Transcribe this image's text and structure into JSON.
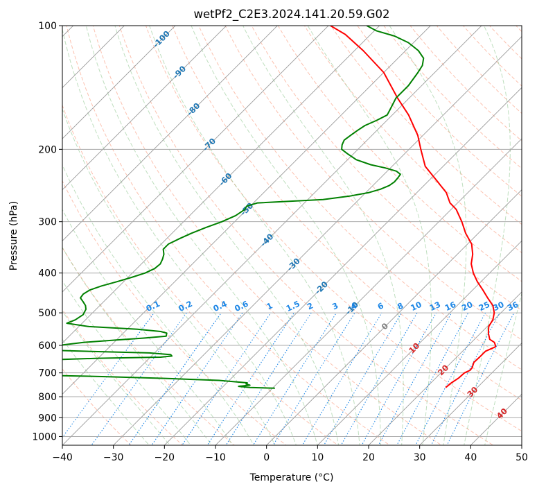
{
  "chart_data": {
    "type": "skewt",
    "title": "wetPf2_C2E3.2024.141.20.59.G02",
    "xlabel": "Temperature (°C)",
    "ylabel": "Pressure (hPa)",
    "xlim": [
      -40,
      50
    ],
    "ylim": [
      1050,
      100
    ],
    "x_ticks": [
      "−40",
      "−30",
      "−20",
      "−10",
      "0",
      "10",
      "20",
      "30",
      "40",
      "50"
    ],
    "y_ticks": [
      "100",
      "200",
      "300",
      "400",
      "500",
      "600",
      "700",
      "800",
      "900",
      "1000"
    ],
    "y_tick_values": [
      100,
      200,
      300,
      400,
      500,
      600,
      700,
      800,
      900,
      1000
    ],
    "isotherm_labels": [
      "-100",
      "-90",
      "-80",
      "-70",
      "-60",
      "-50",
      "-40",
      "-30",
      "-20",
      "-10",
      "0",
      "10",
      "20",
      "30",
      "40"
    ],
    "mixing_ratio_labels": [
      "0.1",
      "0.2",
      "0.4",
      "0.6",
      "1",
      "1.5",
      "2",
      "3",
      "4",
      "6",
      "8",
      "10",
      "13",
      "16",
      "20",
      "25",
      "30",
      "36"
    ],
    "series": [
      {
        "name": "",
        "color": "#ff0000",
        "points": [
          [
            760,
            23.8
          ],
          [
            740,
            24.0
          ],
          [
            720,
            24.5
          ],
          [
            700,
            24.6
          ],
          [
            690,
            25.2
          ],
          [
            680,
            25.1
          ],
          [
            660,
            24.4
          ],
          [
            640,
            24.5
          ],
          [
            620,
            24.5
          ],
          [
            605,
            25.6
          ],
          [
            600,
            25.3
          ],
          [
            590,
            24.5
          ],
          [
            580,
            23.0
          ],
          [
            560,
            21.5
          ],
          [
            540,
            20.3
          ],
          [
            520,
            19.8
          ],
          [
            500,
            18.7
          ],
          [
            480,
            17.0
          ],
          [
            460,
            14.5
          ],
          [
            440,
            12.0
          ],
          [
            420,
            9.3
          ],
          [
            400,
            6.8
          ],
          [
            380,
            4.6
          ],
          [
            360,
            3.0
          ],
          [
            340,
            0.8
          ],
          [
            320,
            -2.5
          ],
          [
            300,
            -5.5
          ],
          [
            280,
            -9.0
          ],
          [
            270,
            -11.5
          ],
          [
            255,
            -14.2
          ],
          [
            240,
            -18.0
          ],
          [
            220,
            -23.5
          ],
          [
            200,
            -27.7
          ],
          [
            185,
            -31.0
          ],
          [
            165,
            -36.8
          ],
          [
            150,
            -42.3
          ],
          [
            130,
            -50.0
          ],
          [
            115,
            -58.3
          ],
          [
            105,
            -65.0
          ],
          [
            100,
            -69.6
          ]
        ]
      },
      {
        "name": "",
        "color": "#008000",
        "points": [
          [
            763,
            -9.5
          ],
          [
            760,
            -14.5
          ],
          [
            755,
            -17.0
          ],
          [
            750,
            -15.0
          ],
          [
            745,
            -16.0
          ],
          [
            740,
            -16.0
          ],
          [
            730,
            -22.0
          ],
          [
            722,
            -33.0
          ],
          [
            715,
            -45.0
          ],
          [
            710,
            -56.0
          ],
          [
            706,
            -63.0
          ],
          [
            700,
            -66.0
          ],
          [
            690,
            -66.0
          ],
          [
            680,
            -65.0
          ],
          [
            670,
            -62.0
          ],
          [
            662,
            -62.0
          ],
          [
            655,
            -60.0
          ],
          [
            650,
            -58.0
          ],
          [
            645,
            -50.0
          ],
          [
            641,
            -38.0
          ],
          [
            637,
            -36.0
          ],
          [
            632,
            -36.5
          ],
          [
            626,
            -41.0
          ],
          [
            622,
            -50.0
          ],
          [
            617,
            -60.0
          ],
          [
            612,
            -62.0
          ],
          [
            605,
            -61.5
          ],
          [
            598,
            -59.5
          ],
          [
            590,
            -56.0
          ],
          [
            582,
            -50.0
          ],
          [
            576,
            -45.0
          ],
          [
            570,
            -41.0
          ],
          [
            560,
            -41.5
          ],
          [
            555,
            -43.0
          ],
          [
            548,
            -48.0
          ],
          [
            540,
            -58.0
          ],
          [
            530,
            -63.0
          ],
          [
            520,
            -62.0
          ],
          [
            505,
            -61.5
          ],
          [
            490,
            -62.0
          ],
          [
            480,
            -62.8
          ],
          [
            470,
            -64.0
          ],
          [
            460,
            -65.3
          ],
          [
            450,
            -65.5
          ],
          [
            440,
            -65.0
          ],
          [
            430,
            -63.5
          ],
          [
            420,
            -61.3
          ],
          [
            410,
            -59.3
          ],
          [
            400,
            -57.5
          ],
          [
            390,
            -56.5
          ],
          [
            380,
            -56.3
          ],
          [
            370,
            -56.8
          ],
          [
            360,
            -57.5
          ],
          [
            350,
            -58.6
          ],
          [
            340,
            -58.6
          ],
          [
            330,
            -57.5
          ],
          [
            320,
            -56.2
          ],
          [
            310,
            -54.5
          ],
          [
            300,
            -52.5
          ],
          [
            290,
            -51.0
          ],
          [
            280,
            -50.4
          ],
          [
            275,
            -50.7
          ],
          [
            270,
            -49.2
          ],
          [
            265,
            -37.0
          ],
          [
            260,
            -32.5
          ],
          [
            255,
            -29.5
          ],
          [
            250,
            -27.8
          ],
          [
            245,
            -26.8
          ],
          [
            240,
            -26.5
          ],
          [
            235,
            -26.6
          ],
          [
            230,
            -26.8
          ],
          [
            226,
            -28.2
          ],
          [
            222,
            -31.0
          ],
          [
            218,
            -34.5
          ],
          [
            212,
            -38.3
          ],
          [
            205,
            -41.2
          ],
          [
            200,
            -43.2
          ],
          [
            195,
            -44.0
          ],
          [
            190,
            -44.5
          ],
          [
            185,
            -44.2
          ],
          [
            180,
            -43.8
          ],
          [
            175,
            -43.3
          ],
          [
            170,
            -42.0
          ],
          [
            165,
            -41.0
          ],
          [
            160,
            -41.5
          ],
          [
            150,
            -42.6
          ],
          [
            140,
            -42.6
          ],
          [
            130,
            -43.3
          ],
          [
            125,
            -43.8
          ],
          [
            120,
            -45.0
          ],
          [
            115,
            -47.5
          ],
          [
            110,
            -51.0
          ],
          [
            106,
            -55.0
          ],
          [
            103,
            -59.5
          ],
          [
            100,
            -62.5
          ]
        ]
      }
    ],
    "grid": true
  }
}
